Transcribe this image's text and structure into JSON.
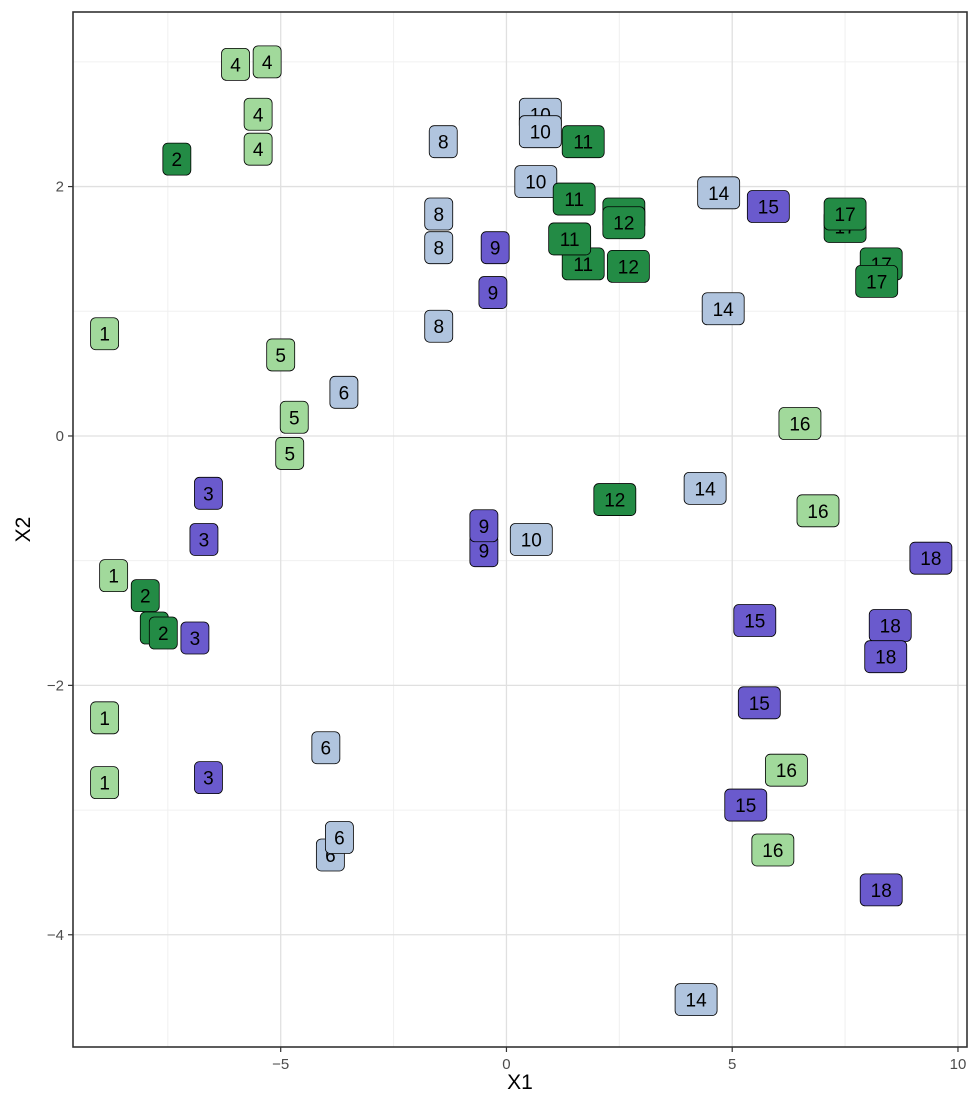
{
  "chart_data": {
    "type": "scatter",
    "xlabel": "X1",
    "ylabel": "X2",
    "xlim": [
      -9.6,
      10.2
    ],
    "ylim": [
      -4.9,
      3.4
    ],
    "x_ticks": [
      -5,
      0,
      5,
      10
    ],
    "x_tick_labels": [
      "−5",
      "0",
      "5",
      "10"
    ],
    "y_ticks": [
      -4,
      -2,
      0,
      2
    ],
    "y_tick_labels": [
      "−4",
      "−2",
      "0",
      "2"
    ],
    "grid": true,
    "legend": "none",
    "colors": {
      "light_green": "#a1d99b",
      "dark_green": "#238b45",
      "light_blue": "#b0c4de",
      "purple": "#6a5acd"
    },
    "points": [
      {
        "x": -8.9,
        "y": 0.82,
        "label": "1",
        "color": "light_green"
      },
      {
        "x": -8.7,
        "y": -1.12,
        "label": "1",
        "color": "light_green"
      },
      {
        "x": -8.9,
        "y": -2.26,
        "label": "1",
        "color": "light_green"
      },
      {
        "x": -8.9,
        "y": -2.78,
        "label": "1",
        "color": "light_green"
      },
      {
        "x": -7.3,
        "y": 2.22,
        "label": "2",
        "color": "dark_green"
      },
      {
        "x": -8.0,
        "y": -1.28,
        "label": "2",
        "color": "dark_green"
      },
      {
        "x": -7.8,
        "y": -1.54,
        "label": "2",
        "color": "dark_green"
      },
      {
        "x": -7.6,
        "y": -1.58,
        "label": "2",
        "color": "dark_green"
      },
      {
        "x": -6.6,
        "y": -0.46,
        "label": "3",
        "color": "purple"
      },
      {
        "x": -6.7,
        "y": -0.83,
        "label": "3",
        "color": "purple"
      },
      {
        "x": -6.9,
        "y": -1.62,
        "label": "3",
        "color": "purple"
      },
      {
        "x": -6.6,
        "y": -2.74,
        "label": "3",
        "color": "purple"
      },
      {
        "x": -6.0,
        "y": 2.98,
        "label": "4",
        "color": "light_green"
      },
      {
        "x": -5.3,
        "y": 3.0,
        "label": "4",
        "color": "light_green"
      },
      {
        "x": -5.5,
        "y": 2.58,
        "label": "4",
        "color": "light_green"
      },
      {
        "x": -5.5,
        "y": 2.3,
        "label": "4",
        "color": "light_green"
      },
      {
        "x": -5.0,
        "y": 0.65,
        "label": "5",
        "color": "light_green"
      },
      {
        "x": -4.7,
        "y": 0.15,
        "label": "5",
        "color": "light_green"
      },
      {
        "x": -4.8,
        "y": -0.14,
        "label": "5",
        "color": "light_green"
      },
      {
        "x": -3.6,
        "y": 0.35,
        "label": "6",
        "color": "light_blue"
      },
      {
        "x": -4.0,
        "y": -2.5,
        "label": "6",
        "color": "light_blue"
      },
      {
        "x": -3.9,
        "y": -3.36,
        "label": "6",
        "color": "light_blue"
      },
      {
        "x": -3.7,
        "y": -3.22,
        "label": "6",
        "color": "light_blue"
      },
      {
        "x": -1.4,
        "y": 2.36,
        "label": "8",
        "color": "light_blue"
      },
      {
        "x": -1.5,
        "y": 1.78,
        "label": "8",
        "color": "light_blue"
      },
      {
        "x": -1.5,
        "y": 1.51,
        "label": "8",
        "color": "light_blue"
      },
      {
        "x": -1.5,
        "y": 0.88,
        "label": "8",
        "color": "light_blue"
      },
      {
        "x": -0.25,
        "y": 1.51,
        "label": "9",
        "color": "purple"
      },
      {
        "x": -0.3,
        "y": 1.15,
        "label": "9",
        "color": "purple"
      },
      {
        "x": -0.5,
        "y": -0.92,
        "label": "9",
        "color": "purple"
      },
      {
        "x": -0.5,
        "y": -0.72,
        "label": "9",
        "color": "purple"
      },
      {
        "x": 0.75,
        "y": 2.58,
        "label": "10",
        "color": "light_blue"
      },
      {
        "x": 0.75,
        "y": 2.44,
        "label": "10",
        "color": "light_blue"
      },
      {
        "x": 0.65,
        "y": 2.04,
        "label": "10",
        "color": "light_blue"
      },
      {
        "x": 0.55,
        "y": -0.83,
        "label": "10",
        "color": "light_blue"
      },
      {
        "x": 1.7,
        "y": 2.36,
        "label": "11",
        "color": "dark_green"
      },
      {
        "x": 1.5,
        "y": 1.9,
        "label": "11",
        "color": "dark_green"
      },
      {
        "x": 1.7,
        "y": 1.38,
        "label": "11",
        "color": "dark_green"
      },
      {
        "x": 1.4,
        "y": 1.58,
        "label": "11",
        "color": "dark_green"
      },
      {
        "x": 2.6,
        "y": 1.78,
        "label": "12",
        "color": "dark_green"
      },
      {
        "x": 2.6,
        "y": 1.71,
        "label": "12",
        "color": "dark_green"
      },
      {
        "x": 2.7,
        "y": 1.36,
        "label": "12",
        "color": "dark_green"
      },
      {
        "x": 2.4,
        "y": -0.51,
        "label": "12",
        "color": "dark_green"
      },
      {
        "x": 4.7,
        "y": 1.95,
        "label": "14",
        "color": "light_blue"
      },
      {
        "x": 4.8,
        "y": 1.02,
        "label": "14",
        "color": "light_blue"
      },
      {
        "x": 4.4,
        "y": -0.42,
        "label": "14",
        "color": "light_blue"
      },
      {
        "x": 4.2,
        "y": -4.52,
        "label": "14",
        "color": "light_blue"
      },
      {
        "x": 5.8,
        "y": 1.84,
        "label": "15",
        "color": "purple"
      },
      {
        "x": 5.5,
        "y": -1.48,
        "label": "15",
        "color": "purple"
      },
      {
        "x": 5.6,
        "y": -2.14,
        "label": "15",
        "color": "purple"
      },
      {
        "x": 5.3,
        "y": -2.96,
        "label": "15",
        "color": "purple"
      },
      {
        "x": 6.5,
        "y": 0.1,
        "label": "16",
        "color": "light_green"
      },
      {
        "x": 6.9,
        "y": -0.6,
        "label": "16",
        "color": "light_green"
      },
      {
        "x": 6.2,
        "y": -2.68,
        "label": "16",
        "color": "light_green"
      },
      {
        "x": 5.9,
        "y": -3.32,
        "label": "16",
        "color": "light_green"
      },
      {
        "x": 7.5,
        "y": 1.68,
        "label": "17",
        "color": "dark_green"
      },
      {
        "x": 7.5,
        "y": 1.78,
        "label": "17",
        "color": "dark_green"
      },
      {
        "x": 8.3,
        "y": 1.38,
        "label": "17",
        "color": "dark_green"
      },
      {
        "x": 8.2,
        "y": 1.24,
        "label": "17",
        "color": "dark_green"
      },
      {
        "x": 9.4,
        "y": -0.98,
        "label": "18",
        "color": "purple"
      },
      {
        "x": 8.5,
        "y": -1.52,
        "label": "18",
        "color": "purple"
      },
      {
        "x": 8.4,
        "y": -1.77,
        "label": "18",
        "color": "purple"
      },
      {
        "x": 8.3,
        "y": -3.64,
        "label": "18",
        "color": "purple"
      }
    ]
  }
}
